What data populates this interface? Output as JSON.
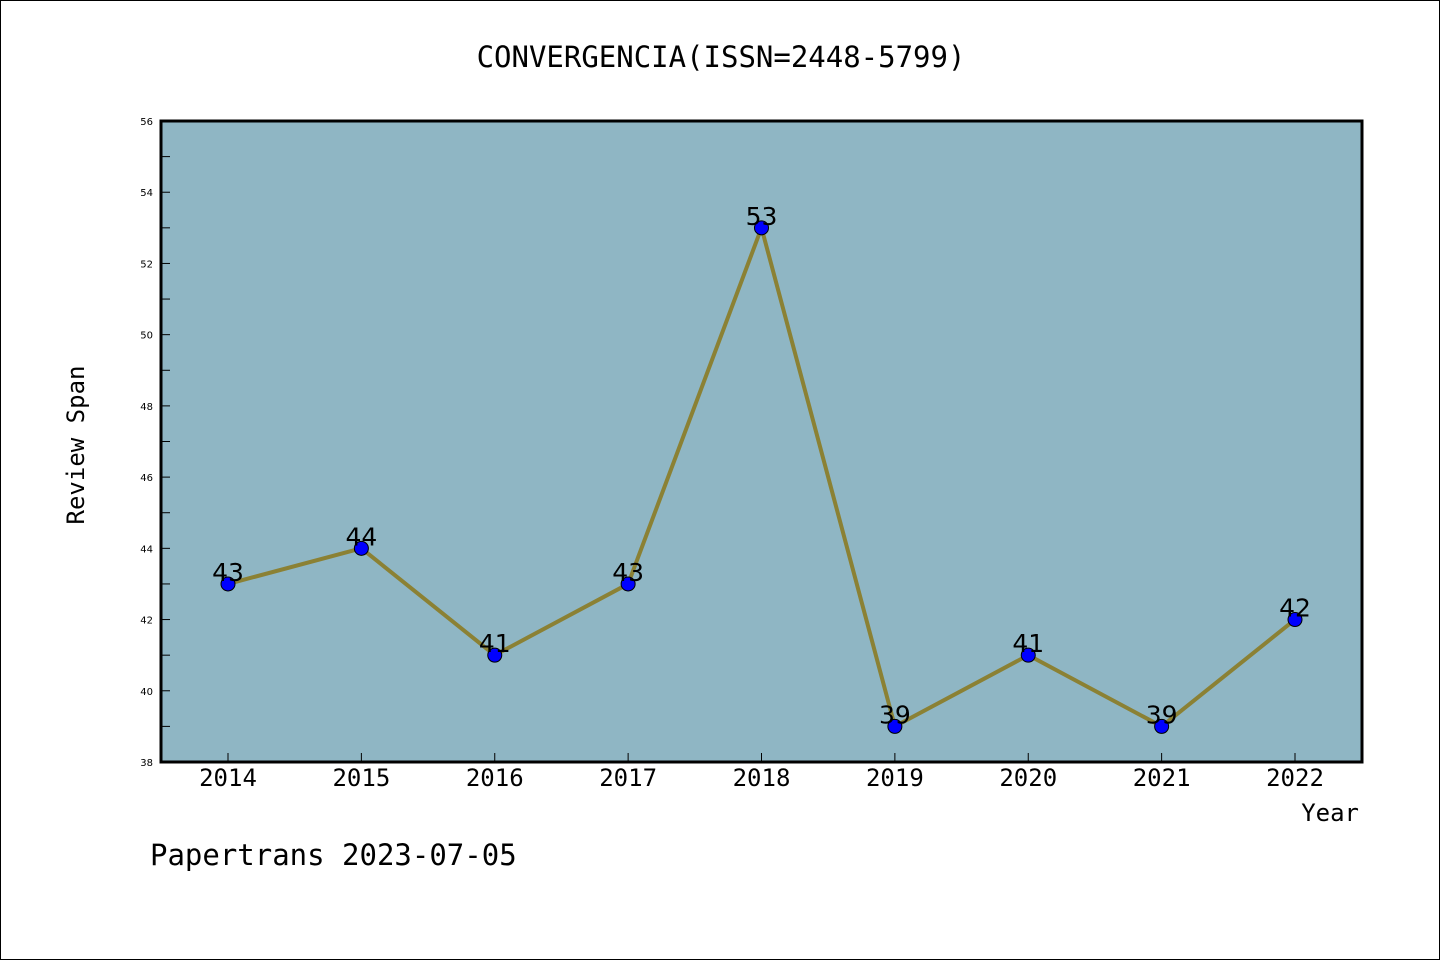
{
  "chart_data": {
    "type": "line",
    "title": "CONVERGENCIA(ISSN=2448-5799)",
    "xlabel": "Year",
    "ylabel": "Review Span",
    "categories": [
      "2014",
      "2015",
      "2016",
      "2017",
      "2018",
      "2019",
      "2020",
      "2021",
      "2022"
    ],
    "series": [
      {
        "values": [
          43,
          44,
          41,
          43,
          53,
          39,
          41,
          39,
          42
        ]
      }
    ],
    "ylim": [
      38,
      56
    ],
    "yticks": [
      38,
      40,
      42,
      44,
      46,
      48,
      50,
      52,
      54,
      56
    ],
    "grid": false,
    "colors": {
      "plot_background": "#8fb6c4",
      "line": "#8b8134",
      "marker": "#0000ff"
    }
  },
  "footer": {
    "text": "Papertrans 2023-07-05"
  }
}
